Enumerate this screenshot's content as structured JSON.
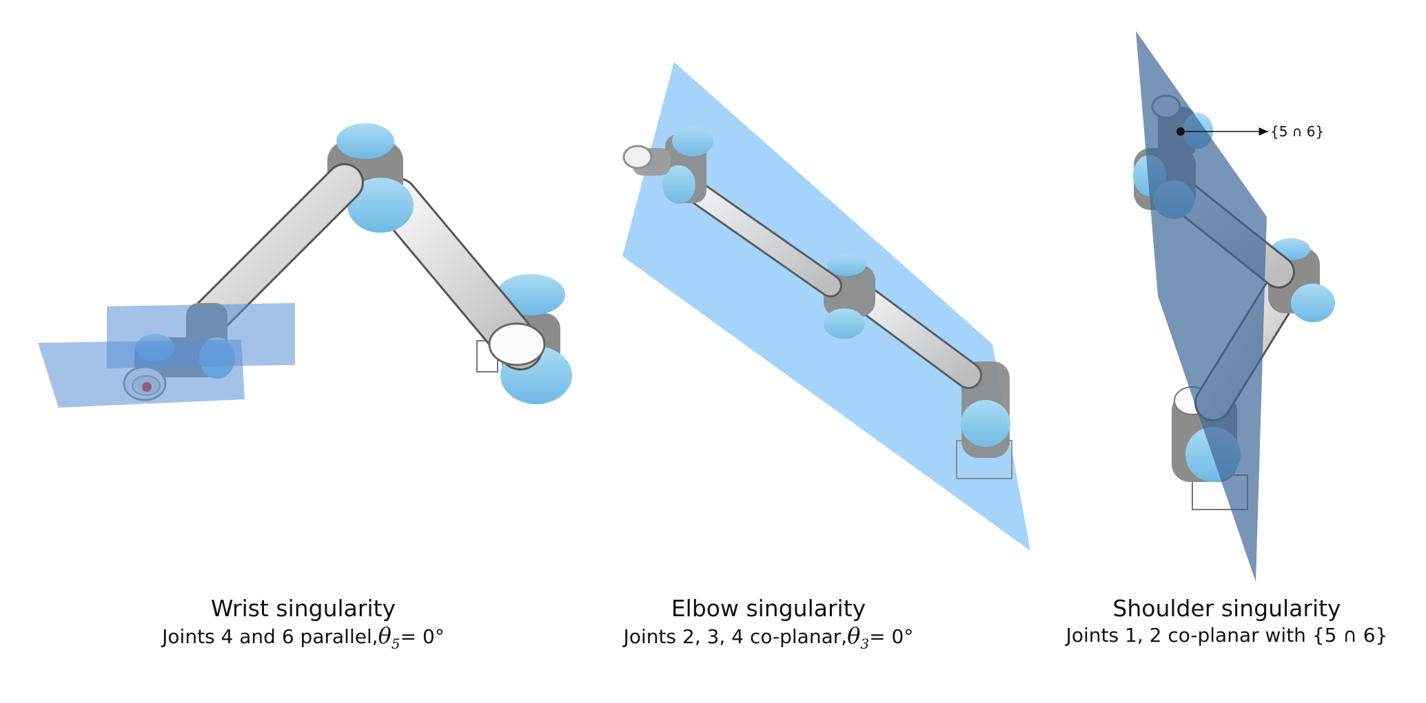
{
  "panels": [
    {
      "title": "Wrist singularity",
      "subtitle_prefix": "Joints 4 and 6 parallel,",
      "symbol": "θ",
      "subscript": "5",
      "subtitle_suffix": "= 0°"
    },
    {
      "title": "Elbow singularity",
      "subtitle_prefix": "Joints 2, 3, 4 co-planar,",
      "symbol": "θ",
      "subscript": "3",
      "subtitle_suffix": "= 0°"
    },
    {
      "title": "Shoulder singularity",
      "subtitle": "Joints 1, 2 co-planar with {5 ∩ 6}"
    }
  ],
  "annotation": {
    "label": "{5 ∩ 6}"
  },
  "colors": {
    "joint_cap": "#8fd0f0",
    "joint_body": "#8c8c8c",
    "link": "#e6e6e6",
    "wrist_plane": "#5a8fd6",
    "elbow_plane": "#7fc1f7",
    "shoulder_plane": "#3f6797",
    "tool_marker": "#e02020"
  }
}
